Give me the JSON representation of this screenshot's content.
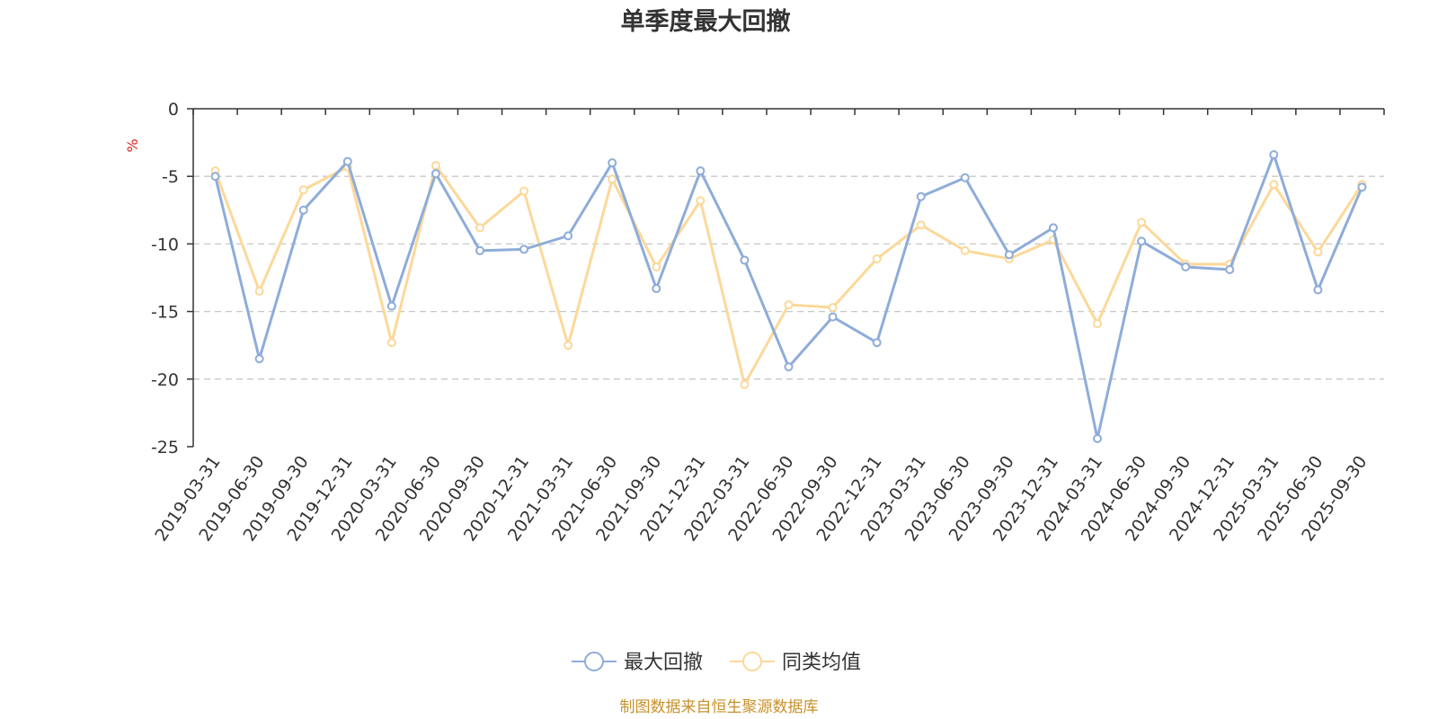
{
  "colors": {
    "series_1": "#8eacd9",
    "series_2": "#fcd899",
    "source_text": "#c8912a",
    "unit_text": "#e0201f",
    "grid": "#c8c8c8",
    "axis": "#333333"
  },
  "chart_data": {
    "type": "line",
    "title": "单季度最大回撤",
    "ylabel": "%",
    "xlabel": "",
    "ylim": [
      -25,
      0
    ],
    "yticks": [
      0,
      -5,
      -10,
      -15,
      -20,
      -25
    ],
    "grid": true,
    "legend_position": "bottom-center",
    "categories": [
      "2019-03-31",
      "2019-06-30",
      "2019-09-30",
      "2019-12-31",
      "2020-03-31",
      "2020-06-30",
      "2020-09-30",
      "2020-12-31",
      "2021-03-31",
      "2021-06-30",
      "2021-09-30",
      "2021-12-31",
      "2022-03-31",
      "2022-06-30",
      "2022-09-30",
      "2022-12-31",
      "2023-03-31",
      "2023-06-30",
      "2023-09-30",
      "2023-12-31",
      "2024-03-31",
      "2024-06-30",
      "2024-09-30",
      "2024-12-31",
      "2025-03-31",
      "2025-06-30",
      "2025-09-30"
    ],
    "series": [
      {
        "name": "最大回撤",
        "values": [
          -5.0,
          -18.5,
          -7.5,
          -3.9,
          -14.6,
          -4.8,
          -10.5,
          -10.4,
          -9.4,
          -4.0,
          -13.3,
          -4.6,
          -11.2,
          -19.1,
          -15.4,
          -17.3,
          -6.5,
          -5.1,
          -10.8,
          -8.8,
          -24.4,
          -9.8,
          -11.7,
          -11.9,
          -3.4,
          -13.4,
          -5.8
        ]
      },
      {
        "name": "同类均值",
        "values": [
          -4.6,
          -13.5,
          -6.0,
          -4.3,
          -17.3,
          -4.2,
          -8.8,
          -6.1,
          -17.5,
          -5.2,
          -11.7,
          -6.8,
          -20.4,
          -14.5,
          -14.7,
          -11.1,
          -8.6,
          -10.5,
          -11.1,
          -9.7,
          -15.9,
          -8.4,
          -11.5,
          -11.5,
          -5.6,
          -10.6,
          -5.6
        ]
      }
    ],
    "source": "制图数据来自恒生聚源数据库"
  }
}
